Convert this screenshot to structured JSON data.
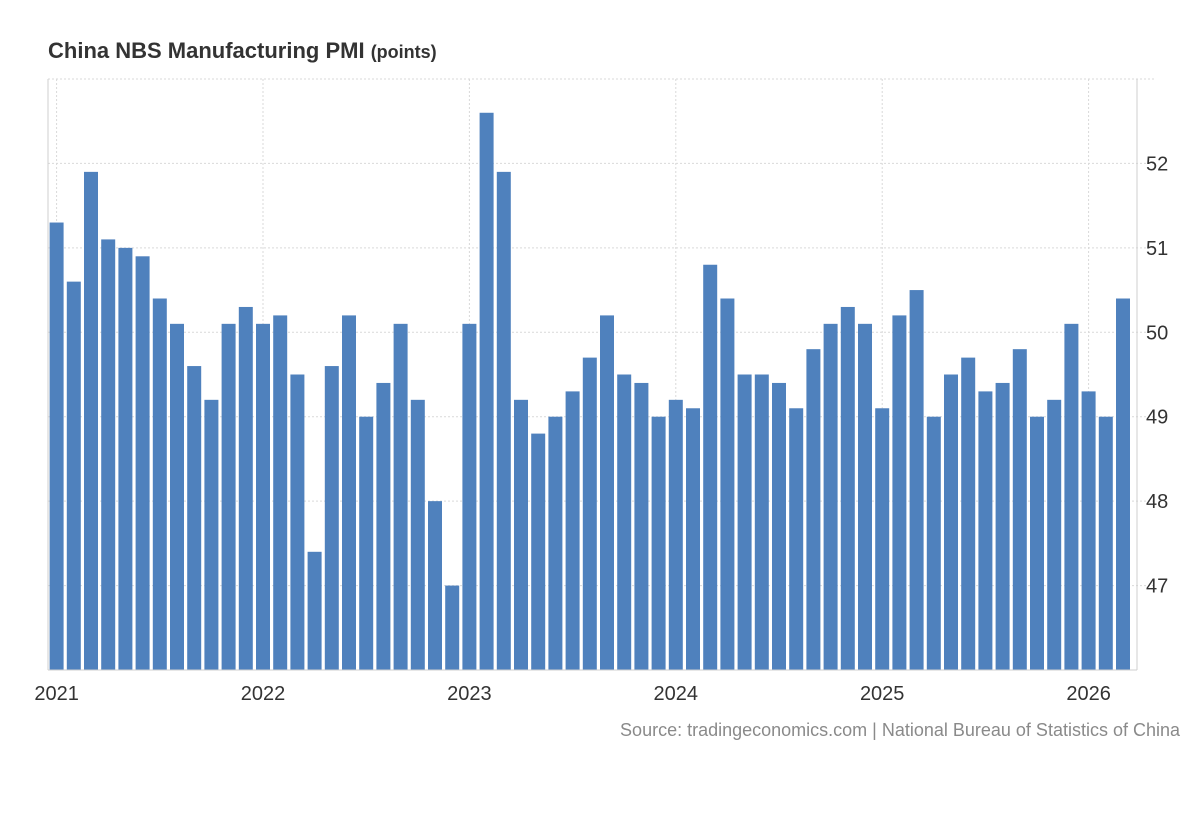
{
  "chart_data": {
    "type": "bar",
    "title": "China NBS Manufacturing PMI",
    "unit": "(points)",
    "xlabel": "",
    "ylabel": "",
    "ylim": [
      46,
      53
    ],
    "y_ticks": [
      47,
      48,
      49,
      50,
      51,
      52
    ],
    "x_tick_labels": [
      "2021",
      "2022",
      "2023",
      "2024",
      "2025",
      "2026"
    ],
    "start": "2021-01",
    "bar_color": "#4f81bd",
    "grid": true,
    "categories": [
      "Jan 2021",
      "Feb 2021",
      "Mar 2021",
      "Apr 2021",
      "May 2021",
      "Jun 2021",
      "Jul 2021",
      "Aug 2021",
      "Sep 2021",
      "Oct 2021",
      "Nov 2021",
      "Dec 2021",
      "Jan 2022",
      "Feb 2022",
      "Mar 2022",
      "Apr 2022",
      "May 2022",
      "Jun 2022",
      "Jul 2022",
      "Aug 2022",
      "Sep 2022",
      "Oct 2022",
      "Nov 2022",
      "Dec 2022",
      "Jan 2023",
      "Feb 2023",
      "Mar 2023",
      "Apr 2023",
      "May 2023",
      "Jun 2023",
      "Jul 2023",
      "Aug 2023",
      "Sep 2023",
      "Oct 2023",
      "Nov 2023",
      "Dec 2023",
      "Jan 2024",
      "Feb 2024",
      "Mar 2024",
      "Apr 2024",
      "May 2024",
      "Jun 2024",
      "Jul 2024",
      "Aug 2024",
      "Sep 2024",
      "Oct 2024",
      "Nov 2024",
      "Dec 2024",
      "Jan 2025",
      "Feb 2025",
      "Mar 2025",
      "Apr 2025",
      "May 2025",
      "Jun 2025",
      "Jul 2025",
      "Aug 2025",
      "Sep 2025",
      "Oct 2025",
      "Nov 2025",
      "Dec 2025",
      "Jan 2026",
      "Feb 2026",
      "Mar 2026"
    ],
    "values": [
      51.3,
      50.6,
      51.9,
      51.1,
      51.0,
      50.9,
      50.4,
      50.1,
      49.6,
      49.2,
      50.1,
      50.3,
      50.1,
      50.2,
      49.5,
      47.4,
      49.6,
      50.2,
      49.0,
      49.4,
      50.1,
      49.2,
      48.0,
      47.0,
      50.1,
      52.6,
      51.9,
      49.2,
      48.8,
      49.0,
      49.3,
      49.7,
      50.2,
      49.5,
      49.4,
      49.0,
      49.2,
      49.1,
      50.8,
      50.4,
      49.5,
      49.5,
      49.4,
      49.1,
      49.8,
      50.1,
      50.3,
      50.1,
      49.1,
      50.2,
      50.5,
      49.0,
      49.5,
      49.7,
      49.3,
      49.4,
      49.8,
      49.0,
      49.2,
      50.1,
      49.3,
      49.0,
      50.4
    ]
  },
  "source": "Source: tradingeconomics.com | National Bureau of Statistics of China"
}
